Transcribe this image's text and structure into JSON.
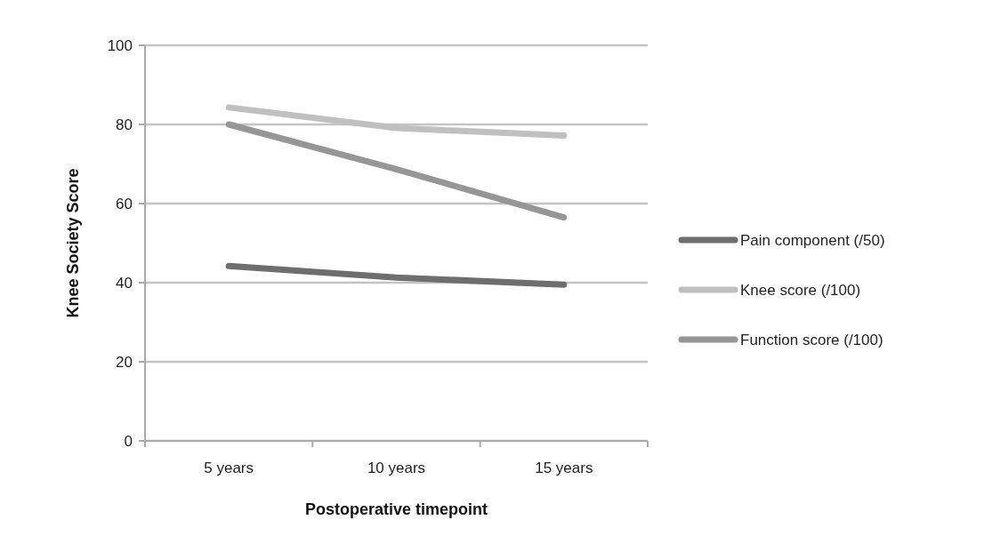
{
  "chart_data": {
    "type": "line",
    "xlabel": "Postoperative timepoint",
    "ylabel": "Knee Society Score",
    "categories": [
      "5 years",
      "10 years",
      "15 years"
    ],
    "series": [
      {
        "name": "Pain component (/50)",
        "color": "#6e6e6e",
        "values": [
          44.2,
          41.3,
          39.5
        ]
      },
      {
        "name": "Knee score (/100)",
        "color": "#c0c0c0",
        "values": [
          84.3,
          79.1,
          77.2
        ]
      },
      {
        "name": "Function score (/100)",
        "color": "#969696",
        "values": [
          80,
          68.7,
          56.5
        ]
      }
    ],
    "ylim": [
      0,
      100
    ],
    "yticks": [
      0,
      20,
      40,
      60,
      80,
      100
    ],
    "grid": "y",
    "legend": "right",
    "marker": "none",
    "line_style": "solid"
  }
}
